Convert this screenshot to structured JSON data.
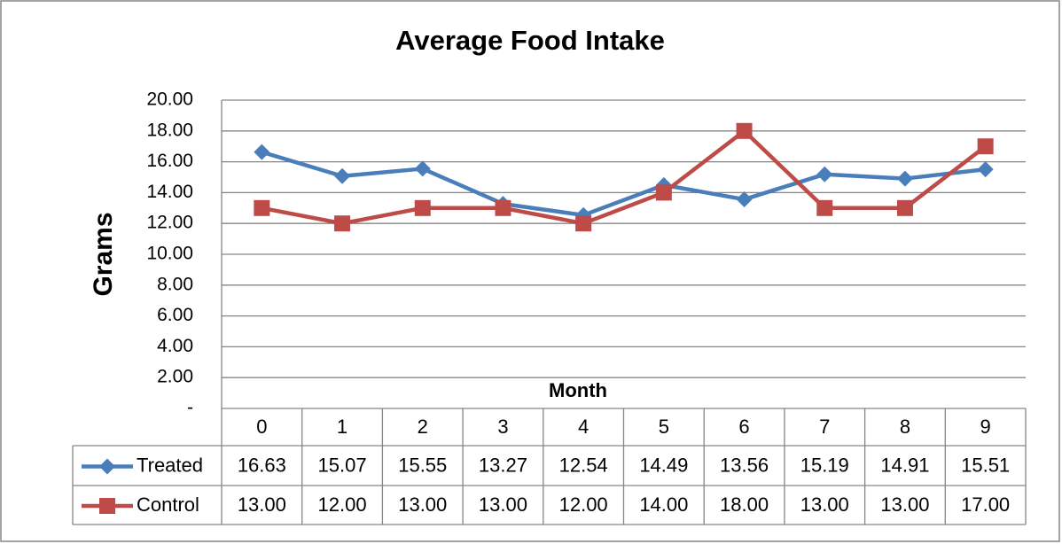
{
  "chart_data": {
    "type": "line",
    "title": "Average Food Intake",
    "x_label": "Month",
    "y_label": "Grams",
    "categories": [
      "0",
      "1",
      "2",
      "3",
      "4",
      "5",
      "6",
      "7",
      "8",
      "9"
    ],
    "series": [
      {
        "name": "Treated",
        "color": "#4a7ebb",
        "marker": "diamond",
        "values": [
          16.63,
          15.07,
          15.55,
          13.27,
          12.54,
          14.49,
          13.56,
          15.19,
          14.91,
          15.51
        ]
      },
      {
        "name": "Control",
        "color": "#be4b48",
        "marker": "square",
        "values": [
          13,
          12,
          13,
          13,
          12,
          14,
          18,
          13,
          13,
          17
        ],
        "value_labels": [
          "13.00",
          "12.00",
          "13.00",
          "13.00",
          "12.00",
          "14.00",
          "18.00",
          "13.00",
          "13.00",
          "17.00"
        ]
      }
    ],
    "ylim": [
      0,
      20
    ],
    "yticks": [
      {
        "value": 0,
        "label": "-"
      },
      {
        "value": 2,
        "label": "2.00"
      },
      {
        "value": 4,
        "label": "4.00"
      },
      {
        "value": 6,
        "label": "6.00"
      },
      {
        "value": 8,
        "label": "8.00"
      },
      {
        "value": 10,
        "label": "10.00"
      },
      {
        "value": 12,
        "label": "12.00"
      },
      {
        "value": 14,
        "label": "14.00"
      },
      {
        "value": 16,
        "label": "16.00"
      },
      {
        "value": 18,
        "label": "18.00"
      },
      {
        "value": 20,
        "label": "20.00"
      }
    ],
    "grid": true,
    "data_table": true
  }
}
